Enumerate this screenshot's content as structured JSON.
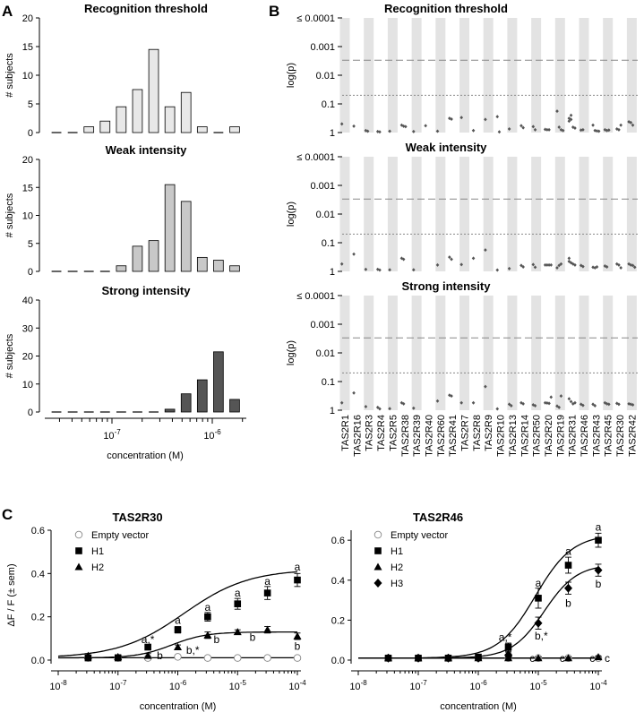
{
  "panel_letters": [
    "A",
    "B",
    "C"
  ],
  "chart_data": [
    {
      "id": "A1",
      "type": "bar",
      "panel": "A",
      "title": "Recognition threshold",
      "ylabel": "# subjects",
      "yticks": [
        "0",
        "5",
        "10",
        "15",
        "20"
      ],
      "ylim": [
        0,
        20
      ],
      "values": [
        0,
        0,
        1,
        2,
        4.5,
        7.5,
        14.5,
        4.5,
        7,
        1,
        0,
        1
      ],
      "color": "#e8e8e8"
    },
    {
      "id": "A2",
      "type": "bar",
      "panel": "A",
      "title": "Weak intensity",
      "ylabel": "# subjects",
      "yticks": [
        "0",
        "5",
        "10",
        "15",
        "20"
      ],
      "ylim": [
        0,
        20
      ],
      "values": [
        0,
        0,
        0,
        0,
        1,
        4.5,
        5.5,
        15.5,
        12.5,
        2.5,
        2,
        1
      ],
      "color": "#c8c8c8"
    },
    {
      "id": "A3",
      "type": "bar",
      "panel": "A",
      "title": "Strong intensity",
      "ylabel": "# subjects",
      "xlabel": "concentration (M)",
      "xticks": [
        {
          "base": "10",
          "exp": "-7"
        },
        {
          "base": "10",
          "exp": "-6"
        }
      ],
      "yticks": [
        "0",
        "10",
        "20",
        "30",
        "40"
      ],
      "ylim": [
        0,
        40
      ],
      "values": [
        0,
        0,
        0,
        0,
        0,
        0,
        0,
        1,
        6.5,
        11.5,
        21.5,
        4.5
      ],
      "color": "#555555"
    },
    {
      "id": "B",
      "type": "scatter",
      "panel": "B",
      "ylabel": "log(p)",
      "yticks": [
        "≤ 0.0001",
        "0.001",
        "0.01",
        "0.1",
        "1"
      ],
      "categories": [
        "TAS2R1",
        "TAS2R16",
        "TAS2R3",
        "TAS2R4",
        "TAS2R5",
        "TAS2R38",
        "TAS2R39",
        "TAS2R40",
        "TAS2R60",
        "TAS2R41",
        "TAS2R7",
        "TAS2R8",
        "TAS2R9",
        "TAS2R10",
        "TAS2R13",
        "TAS2R14",
        "TAS2R50",
        "TAS2R20",
        "TAS2R19",
        "TAS2R31",
        "TAS2R46",
        "TAS2R43",
        "TAS2R45",
        "TAS2R30",
        "TAS2R42"
      ],
      "thresholds": {
        "dashed_p": 0.003,
        "dotted_p": 0.05
      },
      "subplots": [
        {
          "title": "Recognition threshold",
          "points": [
            [
              0,
              0.5
            ],
            [
              1,
              0.6
            ],
            [
              2,
              0.85
            ],
            [
              2,
              0.9
            ],
            [
              3,
              0.92
            ],
            [
              3,
              0.95
            ],
            [
              4,
              0.9
            ],
            [
              5,
              0.55
            ],
            [
              5,
              0.6
            ],
            [
              5,
              0.62
            ],
            [
              6,
              0.92
            ],
            [
              7,
              0.58
            ],
            [
              8,
              0.9
            ],
            [
              9,
              0.32
            ],
            [
              9,
              0.34
            ],
            [
              10,
              0.3
            ],
            [
              11,
              0.85
            ],
            [
              12,
              0.35
            ],
            [
              13,
              0.28
            ],
            [
              13,
              0.95
            ],
            [
              14,
              0.75
            ],
            [
              15,
              0.58
            ],
            [
              15,
              0.68
            ],
            [
              16,
              0.62
            ],
            [
              16,
              0.8
            ],
            [
              17,
              0.78
            ],
            [
              17,
              0.8
            ],
            [
              17,
              0.8
            ],
            [
              18,
              0.18
            ],
            [
              18,
              0.65
            ],
            [
              18,
              0.8
            ],
            [
              18,
              0.85
            ],
            [
              19,
              0.4
            ],
            [
              19,
              0.35
            ],
            [
              19,
              0.65
            ],
            [
              19,
              0.7
            ],
            [
              19,
              0.32
            ],
            [
              19,
              0.25
            ],
            [
              20,
              0.82
            ],
            [
              20,
              0.8
            ],
            [
              21,
              0.55
            ],
            [
              21,
              0.85
            ],
            [
              21,
              0.88
            ],
            [
              21,
              0.9
            ],
            [
              22,
              0.8
            ],
            [
              22,
              0.85
            ],
            [
              22,
              0.82
            ],
            [
              23,
              0.75
            ],
            [
              23,
              0.8
            ],
            [
              23,
              0.55
            ],
            [
              24,
              0.42
            ],
            [
              24,
              0.45
            ],
            [
              24,
              0.55
            ]
          ]
        },
        {
          "title": "Weak intensity",
          "points": [
            [
              0,
              0.55
            ],
            [
              1,
              0.25
            ],
            [
              2,
              0.85
            ],
            [
              3,
              0.85
            ],
            [
              3,
              0.9
            ],
            [
              4,
              0.88
            ],
            [
              5,
              0.35
            ],
            [
              5,
              0.38
            ],
            [
              6,
              0.88
            ],
            [
              8,
              0.6
            ],
            [
              9,
              0.32
            ],
            [
              9,
              0.38
            ],
            [
              10,
              0.58
            ],
            [
              11,
              0.35
            ],
            [
              12,
              0.18
            ],
            [
              13,
              0.9
            ],
            [
              14,
              0.8
            ],
            [
              15,
              0.62
            ],
            [
              15,
              0.7
            ],
            [
              16,
              0.58
            ],
            [
              16,
              0.72
            ],
            [
              17,
              0.6
            ],
            [
              17,
              0.6
            ],
            [
              17,
              0.6
            ],
            [
              17,
              0.6
            ],
            [
              18,
              0.75
            ],
            [
              18,
              0.62
            ],
            [
              18,
              0.55
            ],
            [
              19,
              0.35
            ],
            [
              19,
              0.5
            ],
            [
              19,
              0.55
            ],
            [
              19,
              0.6
            ],
            [
              19,
              0.45
            ],
            [
              20,
              0.62
            ],
            [
              20,
              0.68
            ],
            [
              21,
              0.72
            ],
            [
              21,
              0.75
            ],
            [
              21,
              0.7
            ],
            [
              22,
              0.65
            ],
            [
              22,
              0.7
            ],
            [
              23,
              0.55
            ],
            [
              23,
              0.6
            ],
            [
              23,
              0.75
            ],
            [
              24,
              0.55
            ],
            [
              24,
              0.6
            ],
            [
              24,
              0.62
            ],
            [
              24,
              0.72
            ]
          ]
        },
        {
          "title": "Strong intensity",
          "points": [
            [
              0,
              0.55
            ],
            [
              1,
              0.25
            ],
            [
              2,
              0.75
            ],
            [
              3,
              0.8
            ],
            [
              3,
              0.9
            ],
            [
              4,
              0.88
            ],
            [
              5,
              0.55
            ],
            [
              5,
              0.6
            ],
            [
              6,
              0.85
            ],
            [
              8,
              0.48
            ],
            [
              9,
              0.3
            ],
            [
              9,
              0.32
            ],
            [
              10,
              0.55
            ],
            [
              11,
              0.55
            ],
            [
              12,
              0.15
            ],
            [
              13,
              0.9
            ],
            [
              14,
              0.62
            ],
            [
              14,
              0.7
            ],
            [
              15,
              0.55
            ],
            [
              15,
              0.6
            ],
            [
              16,
              0.65
            ],
            [
              16,
              0.7
            ],
            [
              17,
              0.55
            ],
            [
              17,
              0.56
            ],
            [
              17,
              0.58
            ],
            [
              17,
              0.35
            ],
            [
              18,
              0.72
            ],
            [
              18,
              0.8
            ],
            [
              18,
              0.32
            ],
            [
              19,
              0.4
            ],
            [
              19,
              0.5
            ],
            [
              19,
              0.6
            ],
            [
              19,
              0.55
            ],
            [
              20,
              0.62
            ],
            [
              20,
              0.68
            ],
            [
              21,
              0.62
            ],
            [
              21,
              0.7
            ],
            [
              22,
              0.55
            ],
            [
              22,
              0.6
            ],
            [
              22,
              0.62
            ],
            [
              23,
              0.58
            ],
            [
              23,
              0.62
            ],
            [
              24,
              0.6
            ],
            [
              24,
              0.62
            ],
            [
              24,
              0.65
            ]
          ]
        }
      ]
    },
    {
      "id": "C1",
      "type": "line",
      "panel": "C",
      "title": "TAS2R30",
      "ylabel": "ΔF / F (± sem)",
      "xlabel": "concentration (M)",
      "yticks": [
        "0.0",
        "0.2",
        "0.4",
        "0.6"
      ],
      "ylim": [
        0,
        0.6
      ],
      "xlim_exp": [
        -8,
        -4
      ],
      "xticks": [
        {
          "base": "10",
          "exp": "-8"
        },
        {
          "base": "10",
          "exp": "-7"
        },
        {
          "base": "10",
          "exp": "-6"
        },
        {
          "base": "10",
          "exp": "-5"
        },
        {
          "base": "10",
          "exp": "-4"
        }
      ],
      "x_exp": [
        -7.5,
        -7,
        -6.5,
        -6,
        -5.5,
        -5,
        -4.5,
        -4
      ],
      "series": [
        {
          "name": "Empty vector",
          "marker": "circle",
          "values": [
            0.01,
            0.01,
            0.01,
            0.015,
            0.01,
            0.01,
            0.01,
            0.01
          ],
          "sem": [
            0.005,
            0.005,
            0.005,
            0.005,
            0.005,
            0.005,
            0.005,
            0.005
          ],
          "curve": "flat"
        },
        {
          "name": "H1",
          "marker": "square",
          "values": [
            0.01,
            0.01,
            0.06,
            0.14,
            0.2,
            0.26,
            0.31,
            0.37
          ],
          "sem": [
            0.01,
            0.01,
            0.01,
            0.015,
            0.02,
            0.025,
            0.03,
            0.03
          ],
          "curve": {
            "bottom": 0.01,
            "top": 0.42,
            "ec50_exp": -5.9,
            "hill": 0.8
          }
        },
        {
          "name": "H2",
          "marker": "triangle",
          "values": [
            0.02,
            0.015,
            0.02,
            0.06,
            0.115,
            0.13,
            0.14,
            0.11
          ],
          "sem": [
            0.01,
            0.01,
            0.01,
            0.01,
            0.015,
            0.01,
            0.015,
            0.015
          ],
          "curve": {
            "bottom": 0.01,
            "top": 0.13,
            "ec50_exp": -6.1,
            "hill": 1.5
          }
        }
      ],
      "annotations": [
        {
          "text": "a",
          "x_exp": -6,
          "y": 0.185
        },
        {
          "text": "a",
          "x_exp": -5.5,
          "y": 0.245
        },
        {
          "text": "a",
          "x_exp": -5,
          "y": 0.31
        },
        {
          "text": "a",
          "x_exp": -4.5,
          "y": 0.365
        },
        {
          "text": "a",
          "x_exp": -4,
          "y": 0.43
        },
        {
          "text": "a,*",
          "x_exp": -6.5,
          "y": 0.095
        },
        {
          "text": "b",
          "x_exp": -6.3,
          "y": 0.02
        },
        {
          "text": "b,*",
          "x_exp": -5.75,
          "y": 0.045
        },
        {
          "text": "b",
          "x_exp": -5.35,
          "y": 0.095
        },
        {
          "text": "b",
          "x_exp": -4.75,
          "y": 0.105
        },
        {
          "text": "b",
          "x_exp": -4,
          "y": 0.065
        }
      ]
    },
    {
      "id": "C2",
      "type": "line",
      "panel": "C",
      "title": "TAS2R46",
      "xlabel": "concentration (M)",
      "yticks": [
        "0.0",
        "0.2",
        "0.4",
        "0.6"
      ],
      "ylim": [
        0,
        0.65
      ],
      "xlim_exp": [
        -8,
        -4
      ],
      "xticks": [
        {
          "base": "10",
          "exp": "-8"
        },
        {
          "base": "10",
          "exp": "-7"
        },
        {
          "base": "10",
          "exp": "-6"
        },
        {
          "base": "10",
          "exp": "-5"
        },
        {
          "base": "10",
          "exp": "-4"
        }
      ],
      "x_exp": [
        -7.5,
        -7,
        -6.5,
        -6,
        -5.5,
        -5,
        -4.5,
        -4
      ],
      "series": [
        {
          "name": "Empty vector",
          "marker": "circle",
          "values": [
            0.01,
            0.01,
            0.01,
            0.01,
            0.01,
            0.01,
            0.01,
            0.01
          ],
          "sem": [
            0.005,
            0.005,
            0.005,
            0.005,
            0.005,
            0.005,
            0.005,
            0.005
          ],
          "curve": "flat"
        },
        {
          "name": "H1",
          "marker": "square",
          "values": [
            0.01,
            0.01,
            0.01,
            0.015,
            0.065,
            0.31,
            0.475,
            0.6
          ],
          "sem": [
            0.01,
            0.01,
            0.01,
            0.01,
            0.02,
            0.05,
            0.04,
            0.035
          ],
          "curve": {
            "bottom": 0.01,
            "top": 0.63,
            "ec50_exp": -5.05,
            "hill": 1.4
          }
        },
        {
          "name": "H2",
          "marker": "triangle",
          "values": [
            0.01,
            0.01,
            0.01,
            0.01,
            0.01,
            0.01,
            0.01,
            0.015
          ],
          "sem": [
            0.005,
            0.005,
            0.005,
            0.005,
            0.005,
            0.005,
            0.005,
            0.005
          ],
          "curve": "flat"
        },
        {
          "name": "H3",
          "marker": "diamond",
          "values": [
            0.01,
            0.01,
            0.01,
            0.01,
            0.025,
            0.185,
            0.36,
            0.45
          ],
          "sem": [
            0.01,
            0.01,
            0.01,
            0.01,
            0.015,
            0.03,
            0.03,
            0.03
          ],
          "curve": {
            "bottom": 0.01,
            "top": 0.48,
            "ec50_exp": -4.9,
            "hill": 1.6
          }
        }
      ],
      "annotations": [
        {
          "text": "a",
          "x_exp": -5,
          "y": 0.385
        },
        {
          "text": "a",
          "x_exp": -4.5,
          "y": 0.545
        },
        {
          "text": "a",
          "x_exp": -4,
          "y": 0.665
        },
        {
          "text": "a,*",
          "x_exp": -5.55,
          "y": 0.115
        },
        {
          "text": "b",
          "x_exp": -5.48,
          "y": 0.025
        },
        {
          "text": "b,*",
          "x_exp": -4.95,
          "y": 0.12
        },
        {
          "text": "b",
          "x_exp": -4.5,
          "y": 0.285
        },
        {
          "text": "b",
          "x_exp": -4,
          "y": 0.38
        },
        {
          "text": "c",
          "x_exp": -5.1,
          "y": 0.008
        },
        {
          "text": "c",
          "x_exp": -4.6,
          "y": 0.008
        },
        {
          "text": "c",
          "x_exp": -4.1,
          "y": 0.008
        },
        {
          "text": "c",
          "x_exp": -3.85,
          "y": 0.008
        }
      ]
    }
  ]
}
